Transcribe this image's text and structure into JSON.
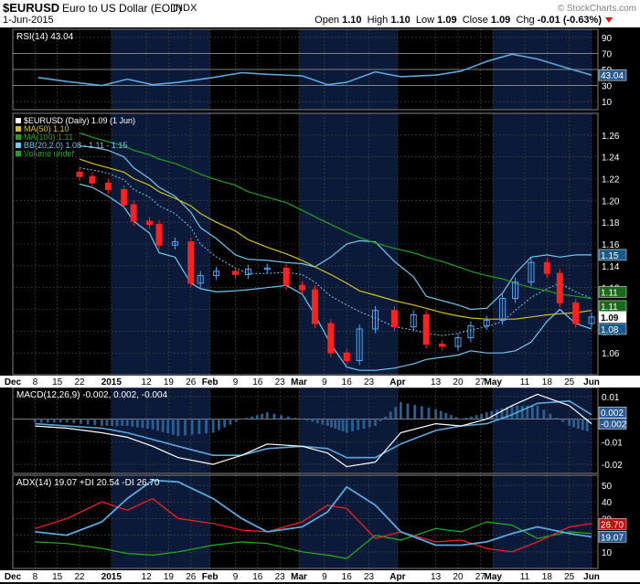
{
  "header": {
    "symbol": "$EURUSD",
    "name": "Euro to US Dollar (EOD)",
    "exchange": "INDX",
    "date": "1-Jun-2015",
    "credit": "© StockCharts.com",
    "open_label": "Open",
    "open": "1.10",
    "high_label": "High",
    "high": "1.10",
    "low_label": "Low",
    "low": "1.09",
    "close_label": "Close",
    "close": "1.09",
    "chg_label": "Chg",
    "chg": "-0.01 (-0.63%)"
  },
  "colors": {
    "panel_bg": "#000000",
    "band_bg": "#0b1a38",
    "grid": "#4a4a4a",
    "up": "#4da6ff",
    "down": "#ff2020",
    "ma50": "#d4c020",
    "ma100": "#20a020",
    "bb": "#70c8f0",
    "rsi": "#5aa8e0",
    "macd": "#ffffff",
    "signal": "#5aa8e0",
    "hist": "#2a6090",
    "adx": "#5aa8e0",
    "pdi": "#20b020",
    "mdi": "#ff2020"
  },
  "chart_data": [
    {
      "type": "line",
      "title": "RSI(14) 43.04",
      "legend": "RSI(14) 43.04",
      "ylim": [
        0,
        100
      ],
      "yticks": [
        "90",
        "70",
        "50",
        "30",
        "10"
      ],
      "ytick_values": [
        90,
        70,
        50,
        30,
        10
      ],
      "reference_lines": [
        70,
        50,
        30
      ],
      "last_value_label": "43.04",
      "x_dates": [
        "2014-12-09",
        "2014-12-18",
        "2014-12-29",
        "2015-01-06",
        "2015-01-14",
        "2015-01-22",
        "2015-02-02",
        "2015-02-11",
        "2015-02-19",
        "2015-03-02",
        "2015-03-10",
        "2015-03-16",
        "2015-03-25",
        "2015-04-02",
        "2015-04-13",
        "2015-04-21",
        "2015-04-29",
        "2015-05-07",
        "2015-05-15",
        "2015-05-25",
        "2015-06-01"
      ],
      "series": [
        {
          "name": "RSI(14)",
          "values": [
            40,
            35,
            30,
            38,
            31,
            34,
            40,
            46,
            44,
            42,
            31,
            34,
            47,
            41,
            43,
            48,
            60,
            69,
            63,
            51,
            43
          ]
        }
      ]
    },
    {
      "type": "candlestick",
      "title": "$EURUSD (Daily) 1.09 (1 Jun)",
      "ylim": [
        1.04,
        1.28
      ],
      "yticks": [
        "1.26",
        "1.24",
        "1.22",
        "1.20",
        "1.18",
        "1.16",
        "1.14",
        "1.12",
        "1.10",
        "1.08",
        "1.06"
      ],
      "ytick_values": [
        1.26,
        1.24,
        1.22,
        1.2,
        1.18,
        1.16,
        1.14,
        1.12,
        1.1,
        1.08,
        1.06
      ],
      "legend": [
        "$EURUSD (Daily) 1.09 (1 Jun)",
        "MA(50) 1.10",
        "MA(100) 1.11",
        "BB(20,2.0) 1.08 - 1.11 - 1.15",
        "Volume undef"
      ],
      "value_labels": [
        "1.15",
        "1.11",
        "1.11",
        "1.09",
        "1.08"
      ],
      "x_dates": [
        "2014-12-22",
        "2014-12-26",
        "2014-12-31",
        "2015-01-05",
        "2015-01-08",
        "2015-01-13",
        "2015-01-16",
        "2015-01-21",
        "2015-01-26",
        "2015-01-29",
        "2015-02-03",
        "2015-02-09",
        "2015-02-13",
        "2015-02-19",
        "2015-02-25",
        "2015-03-02",
        "2015-03-06",
        "2015-03-11",
        "2015-03-16",
        "2015-03-20",
        "2015-03-25",
        "2015-03-31",
        "2015-04-06",
        "2015-04-10",
        "2015-04-15",
        "2015-04-20",
        "2015-04-24",
        "2015-04-29",
        "2015-05-04",
        "2015-05-08",
        "2015-05-13",
        "2015-05-18",
        "2015-05-22",
        "2015-05-27",
        "2015-06-01"
      ],
      "close": [
        1.222,
        1.216,
        1.21,
        1.196,
        1.181,
        1.178,
        1.159,
        1.162,
        1.124,
        1.131,
        1.135,
        1.132,
        1.137,
        1.138,
        1.122,
        1.118,
        1.087,
        1.06,
        1.053,
        1.082,
        1.099,
        1.084,
        1.095,
        1.068,
        1.066,
        1.074,
        1.085,
        1.09,
        1.11,
        1.125,
        1.143,
        1.133,
        1.106,
        1.087,
        1.093
      ],
      "ma50": [
        1.238,
        1.234,
        1.23,
        1.226,
        1.22,
        1.214,
        1.208,
        1.202,
        1.195,
        1.188,
        1.18,
        1.172,
        1.164,
        1.157,
        1.151,
        1.145,
        1.139,
        1.132,
        1.124,
        1.117,
        1.113,
        1.108,
        1.104,
        1.101,
        1.097,
        1.094,
        1.092,
        1.091,
        1.091,
        1.091,
        1.093,
        1.095,
        1.096,
        1.097,
        1.099
      ],
      "ma100": [
        1.262,
        1.258,
        1.254,
        1.25,
        1.246,
        1.242,
        1.238,
        1.234,
        1.228,
        1.224,
        1.219,
        1.214,
        1.208,
        1.203,
        1.198,
        1.191,
        1.185,
        1.178,
        1.171,
        1.166,
        1.161,
        1.156,
        1.152,
        1.148,
        1.144,
        1.139,
        1.135,
        1.131,
        1.128,
        1.124,
        1.12,
        1.117,
        1.114,
        1.112,
        1.11
      ],
      "bb_upper": [
        1.25,
        1.249,
        1.246,
        1.24,
        1.23,
        1.22,
        1.212,
        1.204,
        1.189,
        1.175,
        1.165,
        1.15,
        1.146,
        1.145,
        1.143,
        1.142,
        1.139,
        1.148,
        1.16,
        1.163,
        1.162,
        1.144,
        1.13,
        1.112,
        1.108,
        1.104,
        1.1,
        1.101,
        1.115,
        1.133,
        1.148,
        1.15,
        1.148,
        1.15,
        1.15
      ],
      "bb_mid": [
        1.23,
        1.228,
        1.225,
        1.219,
        1.21,
        1.203,
        1.195,
        1.188,
        1.175,
        1.16,
        1.148,
        1.138,
        1.133,
        1.133,
        1.134,
        1.132,
        1.125,
        1.112,
        1.104,
        1.098,
        1.092,
        1.084,
        1.081,
        1.078,
        1.076,
        1.078,
        1.081,
        1.084,
        1.089,
        1.099,
        1.111,
        1.119,
        1.124,
        1.116,
        1.11
      ],
      "bb_lower": [
        1.215,
        1.212,
        1.204,
        1.194,
        1.181,
        1.17,
        1.152,
        1.148,
        1.124,
        1.119,
        1.116,
        1.117,
        1.118,
        1.12,
        1.122,
        1.114,
        1.095,
        1.068,
        1.047,
        1.044,
        1.044,
        1.046,
        1.05,
        1.054,
        1.056,
        1.058,
        1.062,
        1.06,
        1.06,
        1.062,
        1.07,
        1.089,
        1.1,
        1.087,
        1.082
      ]
    },
    {
      "type": "line",
      "title": "MACD(12,26,9) -0.002, 0.002, -0.004",
      "legend": "MACD(12,26,9) -0.002, 0.002, -0.004",
      "ylim": [
        -0.024,
        0.014
      ],
      "yticks": [
        "0.01",
        "0.00",
        "-0.01",
        "-0.02"
      ],
      "ytick_values": [
        0.01,
        0.0,
        -0.01,
        -0.02
      ],
      "value_labels": [
        "0.002",
        "-0.002"
      ],
      "x_dates": [
        "2014-12-08",
        "2014-12-18",
        "2014-12-29",
        "2015-01-06",
        "2015-01-14",
        "2015-01-22",
        "2015-02-02",
        "2015-02-11",
        "2015-02-19",
        "2015-03-02",
        "2015-03-10",
        "2015-03-16",
        "2015-03-25",
        "2015-04-02",
        "2015-04-13",
        "2015-04-21",
        "2015-04-29",
        "2015-05-07",
        "2015-05-15",
        "2015-05-25",
        "2015-06-01"
      ],
      "series": [
        {
          "name": "MACD",
          "values": [
            -0.003,
            -0.004,
            -0.006,
            -0.008,
            -0.012,
            -0.017,
            -0.02,
            -0.016,
            -0.011,
            -0.012,
            -0.015,
            -0.021,
            -0.019,
            -0.006,
            -0.002,
            -0.003,
            0.0,
            0.006,
            0.011,
            0.006,
            -0.002
          ]
        },
        {
          "name": "Signal",
          "values": [
            -0.002,
            -0.003,
            -0.004,
            -0.006,
            -0.009,
            -0.012,
            -0.016,
            -0.016,
            -0.013,
            -0.012,
            -0.013,
            -0.017,
            -0.017,
            -0.011,
            -0.005,
            -0.003,
            -0.002,
            0.002,
            0.007,
            0.008,
            0.002
          ]
        }
      ]
    },
    {
      "type": "line",
      "title": "ADX(14) 19.07 +DI 20.54 -DI 26.70",
      "legend": "ADX(14) 19.07 +DI 20.54 -DI 26.70",
      "ylim": [
        0,
        56
      ],
      "yticks": [
        "50",
        "40",
        "30",
        "20",
        "10"
      ],
      "ytick_values": [
        50,
        40,
        30,
        20,
        10
      ],
      "value_labels": [
        "26.70",
        "19.07"
      ],
      "x_dates": [
        "2014-12-08",
        "2014-12-18",
        "2014-12-29",
        "2015-01-06",
        "2015-01-14",
        "2015-01-22",
        "2015-02-02",
        "2015-02-11",
        "2015-02-19",
        "2015-03-02",
        "2015-03-10",
        "2015-03-16",
        "2015-03-25",
        "2015-04-02",
        "2015-04-13",
        "2015-04-21",
        "2015-04-29",
        "2015-05-07",
        "2015-05-15",
        "2015-05-25",
        "2015-06-01"
      ],
      "series": [
        {
          "name": "ADX(14)",
          "values": [
            22,
            20,
            28,
            42,
            53,
            52,
            42,
            30,
            22,
            25,
            34,
            49,
            38,
            22,
            14,
            14,
            16,
            21,
            25,
            21,
            19
          ]
        },
        {
          "name": "+DI",
          "values": [
            16,
            15,
            12,
            9,
            8,
            10,
            14,
            16,
            15,
            10,
            8,
            6,
            20,
            17,
            24,
            22,
            28,
            26,
            18,
            22,
            21
          ]
        },
        {
          "name": "-DI",
          "values": [
            24,
            30,
            40,
            35,
            42,
            30,
            27,
            23,
            22,
            28,
            38,
            36,
            18,
            22,
            16,
            17,
            12,
            10,
            16,
            25,
            27
          ]
        }
      ]
    }
  ],
  "x_axis": {
    "labels": [
      "Dec",
      "8",
      "15",
      "22",
      "2015",
      "12",
      "19",
      "26",
      "Feb",
      "9",
      "16",
      "23",
      "Mar",
      "9",
      "16",
      "23",
      "Apr",
      "13",
      "20",
      "27",
      "May",
      "11",
      "18",
      "25",
      "Jun"
    ],
    "label_dates": [
      "2014-12-01",
      "2014-12-08",
      "2014-12-15",
      "2014-12-22",
      "2015-01-01",
      "2015-01-12",
      "2015-01-19",
      "2015-01-26",
      "2015-02-01",
      "2015-02-09",
      "2015-02-16",
      "2015-02-23",
      "2015-03-01",
      "2015-03-09",
      "2015-03-16",
      "2015-03-23",
      "2015-04-01",
      "2015-04-13",
      "2015-04-20",
      "2015-04-27",
      "2015-05-01",
      "2015-05-11",
      "2015-05-18",
      "2015-05-25",
      "2015-06-01"
    ],
    "start": "2014-12-01",
    "end": "2015-06-03"
  }
}
